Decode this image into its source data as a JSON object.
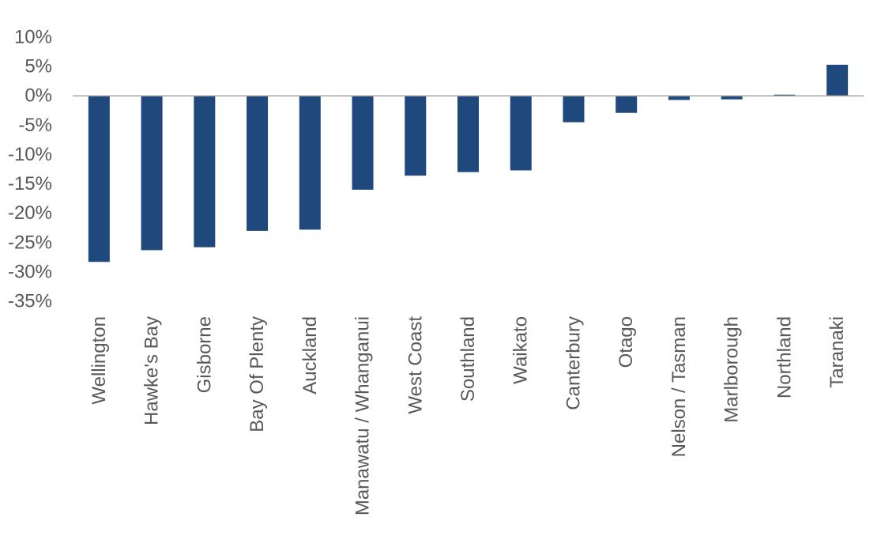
{
  "chart_data": {
    "type": "bar",
    "title": "",
    "xlabel": "",
    "ylabel": "",
    "categories": [
      "Wellington",
      "Hawke's Bay",
      "Gisborne",
      "Bay Of Plenty",
      "Auckland",
      "Manawatu / Whanganui",
      "West Coast",
      "Southland",
      "Waikato",
      "Canterbury",
      "Otago",
      "Nelson / Tasman",
      "Marlborough",
      "Northland",
      "Taranaki"
    ],
    "values": [
      -28.3,
      -26.3,
      -25.8,
      -23.0,
      -22.8,
      -16.0,
      -13.6,
      -13.0,
      -12.7,
      -4.5,
      -2.9,
      -0.7,
      -0.6,
      0.2,
      5.3
    ],
    "ylim": [
      -35,
      10
    ],
    "y_ticks": [
      "10%",
      "5%",
      "0%",
      "-5%",
      "-10%",
      "-15%",
      "-20%",
      "-25%",
      "-30%",
      "-35%"
    ],
    "y_tick_values": [
      10,
      5,
      0,
      -5,
      -10,
      -15,
      -20,
      -25,
      -30,
      -35
    ],
    "bar_color": "#1F497D",
    "axis_color": "#a6a6a6",
    "text_color": "#595959",
    "grid": false,
    "legend": "none"
  }
}
